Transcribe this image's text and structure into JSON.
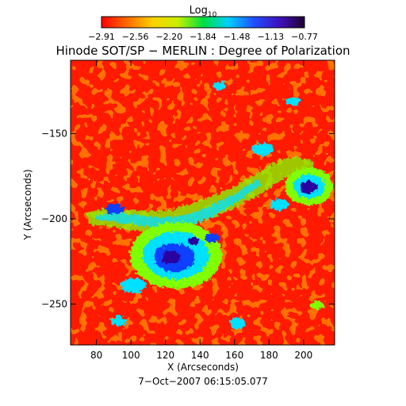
{
  "colorbar": {
    "title_main": "Log",
    "title_sub": "10",
    "ticks": [
      "−2.91",
      "−2.56",
      "−2.20",
      "−1.84",
      "−1.48",
      "−1.13",
      "−0.77"
    ],
    "gradient": [
      "#ff0000",
      "#ff6a00",
      "#ffd000",
      "#c8f000",
      "#00e040",
      "#00d0ff",
      "#2050ff",
      "#4010c0",
      "#200030"
    ]
  },
  "title": "Hinode SOT/SP − MERLIN : Degree of Polarization",
  "x_axis": {
    "label": "X (Arcseconds)",
    "range": [
      65,
      218
    ],
    "ticks": [
      80,
      100,
      120,
      140,
      160,
      180,
      200
    ]
  },
  "y_axis": {
    "label": "Y (Arcseconds)",
    "range": [
      -274,
      -107
    ],
    "ticks": [
      -150,
      -200,
      -250
    ]
  },
  "timestamp": "7−Oct−2007 06:15:05.077",
  "map_palette": {
    "background": "#ff1a00",
    "speckle": "#ff7a00",
    "low_activity": "#ffe000",
    "moderate": "#7fff00",
    "elevated": "#00e0ff",
    "high": "#1040ff",
    "peak": "#2a00a0"
  }
}
